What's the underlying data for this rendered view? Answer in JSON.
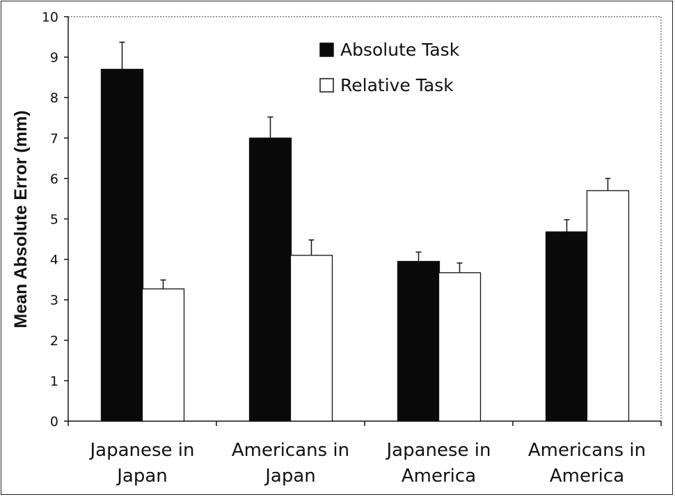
{
  "chart_data": {
    "type": "bar",
    "categories": [
      [
        "Japanese in",
        "Japan"
      ],
      [
        "Americans in",
        "Japan"
      ],
      [
        "Japanese in",
        "America"
      ],
      [
        "Americans in",
        "America"
      ]
    ],
    "series": [
      {
        "name": "Absolute Task",
        "color": "#0a0a0a",
        "values": [
          8.7,
          7.0,
          3.95,
          4.68
        ],
        "errors": [
          0.67,
          0.52,
          0.23,
          0.3
        ]
      },
      {
        "name": "Relative Task",
        "color": "#ffffff",
        "values": [
          3.27,
          4.1,
          3.67,
          5.7
        ],
        "errors": [
          0.22,
          0.38,
          0.24,
          0.3
        ]
      }
    ],
    "ylabel": "Mean Absolute Error (mm)",
    "xlabel": "",
    "ylim": [
      0,
      10
    ],
    "yticks": [
      0,
      1,
      2,
      3,
      4,
      5,
      6,
      7,
      8,
      9,
      10
    ],
    "legend_position": "top-right",
    "grid": false
  }
}
